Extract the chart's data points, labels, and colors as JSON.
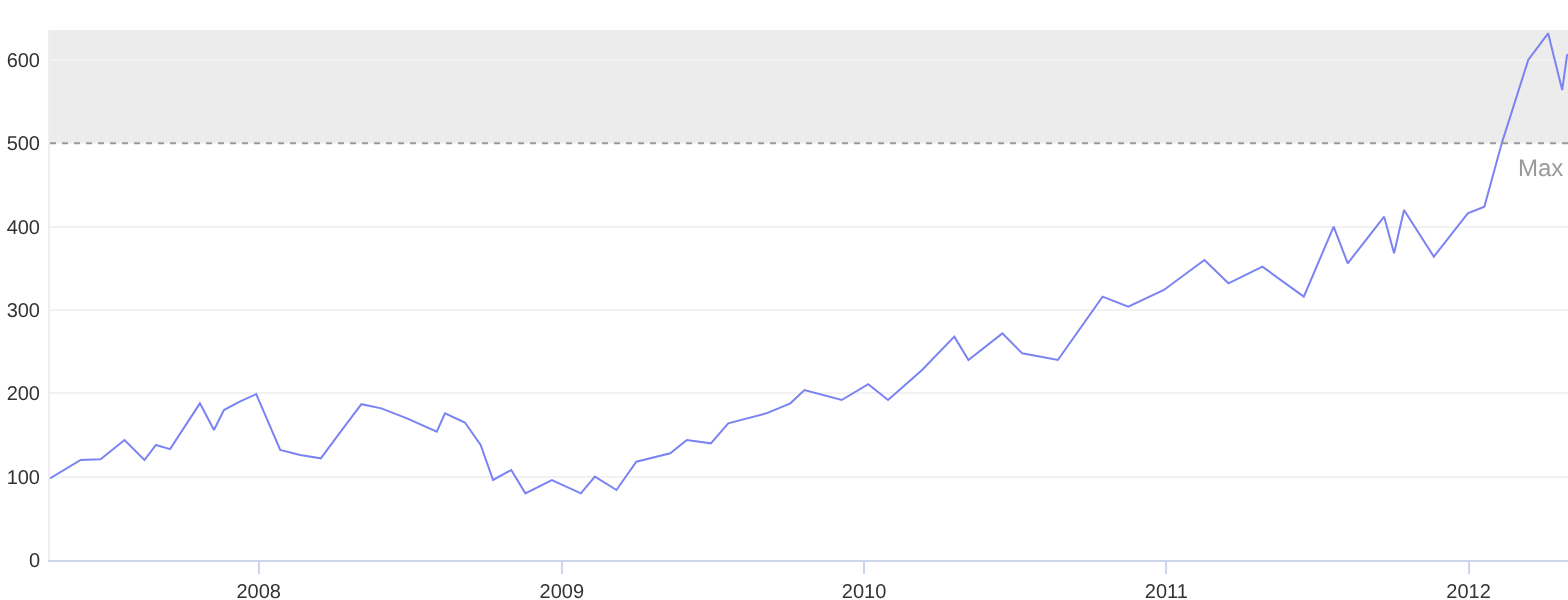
{
  "chart_data": {
    "type": "line",
    "x": [
      "2007-04-24",
      "2007-05-31",
      "2007-06-24",
      "2007-07-23",
      "2007-08-16",
      "2007-08-30",
      "2007-09-16",
      "2007-10-22",
      "2007-11-08",
      "2007-11-20",
      "2007-12-09",
      "2007-12-29",
      "2008-01-08",
      "2008-01-27",
      "2008-02-20",
      "2008-03-16",
      "2008-04-09",
      "2008-05-04",
      "2008-05-28",
      "2008-06-28",
      "2008-08-03",
      "2008-08-13",
      "2008-09-06",
      "2008-09-25",
      "2008-10-10",
      "2008-11-01",
      "2008-11-18",
      "2008-12-20",
      "2009-01-24",
      "2009-02-10",
      "2009-03-08",
      "2009-04-01",
      "2009-05-12",
      "2009-06-01",
      "2009-06-30",
      "2009-07-21",
      "2009-09-05",
      "2009-10-04",
      "2009-10-21",
      "2009-12-05",
      "2010-01-06",
      "2010-01-30",
      "2010-03-12",
      "2010-04-20",
      "2010-05-07",
      "2010-06-17",
      "2010-07-11",
      "2010-08-23",
      "2010-10-16",
      "2010-11-16",
      "2010-12-29",
      "2011-02-16",
      "2011-03-17",
      "2011-04-27",
      "2011-06-16",
      "2011-07-22",
      "2011-08-08",
      "2011-09-21",
      "2011-10-03",
      "2011-10-15",
      "2011-11-20",
      "2011-12-31",
      "2012-01-20",
      "2012-02-10",
      "2012-03-13",
      "2012-04-06",
      "2012-04-23",
      "2012-04-29"
    ],
    "values": [
      98,
      120,
      121,
      144,
      120,
      138,
      133,
      188,
      156,
      180,
      190,
      199,
      176,
      132,
      126,
      122,
      154,
      187,
      182,
      170,
      154,
      176,
      165,
      138,
      96,
      108,
      80,
      96,
      80,
      100,
      84,
      118,
      128,
      144,
      140,
      164,
      176,
      188,
      204,
      192,
      211,
      192,
      228,
      268,
      240,
      272,
      248,
      240,
      316,
      304,
      324,
      360,
      332,
      352,
      316,
      400,
      356,
      412,
      368,
      420,
      364,
      416,
      424,
      500,
      600,
      632,
      564,
      607
    ],
    "color": "#7b83f2",
    "xlim": [
      "2007-04-24",
      "2012-04-30"
    ],
    "xticks": [
      {
        "value": "2008",
        "label": "2008"
      },
      {
        "value": "2009",
        "label": "2009"
      },
      {
        "value": "2010",
        "label": "2010"
      },
      {
        "value": "2011",
        "label": "2011"
      },
      {
        "value": "2012",
        "label": "2012"
      }
    ],
    "ylim": [
      0,
      636
    ],
    "yticks": [
      0,
      100,
      200,
      300,
      400,
      500,
      600
    ],
    "grid": "y",
    "marker": "none",
    "line_style": "solid",
    "ref_lines": [
      {
        "axis": "y",
        "value": 500,
        "label": "Max",
        "color": "#999999",
        "line_style": "dotted"
      }
    ],
    "bands": [
      {
        "axis": "y",
        "from": 500,
        "to": 636,
        "color": "#ececec"
      }
    ]
  }
}
